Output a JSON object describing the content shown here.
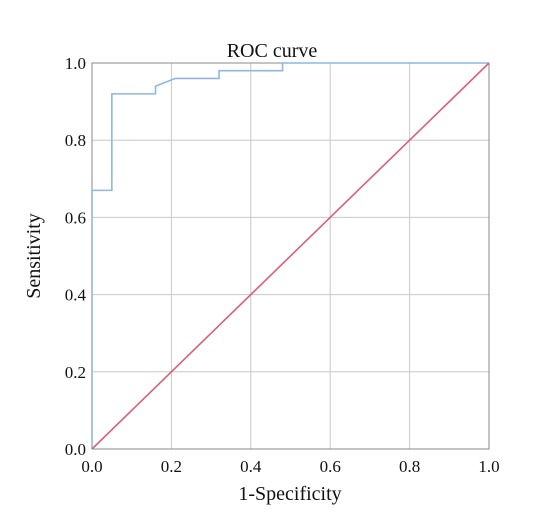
{
  "chart_data": {
    "type": "line",
    "title": "ROC curve",
    "xlabel": "1-Specificity",
    "ylabel": "Sensitivity",
    "xlim": [
      0.0,
      1.0
    ],
    "ylim": [
      0.0,
      1.0
    ],
    "x_ticks": [
      "0.0",
      "0.2",
      "0.4",
      "0.6",
      "0.8",
      "1.0"
    ],
    "y_ticks": [
      "0.0",
      "0.2",
      "0.4",
      "0.6",
      "0.8",
      "1.0"
    ],
    "grid": true,
    "legend": "none",
    "series": [
      {
        "color": "#8fb6e0",
        "x": [
          0.0,
          0.0,
          0.05,
          0.05,
          0.16,
          0.16,
          0.21,
          0.32,
          0.32,
          0.48,
          0.48,
          1.0
        ],
        "y": [
          0.0,
          0.67,
          0.67,
          0.92,
          0.92,
          0.94,
          0.96,
          0.96,
          0.98,
          0.98,
          1.0,
          1.0
        ]
      },
      {
        "color": "#d9607a",
        "x": [
          0.0,
          1.0
        ],
        "y": [
          0.0,
          1.0
        ]
      }
    ]
  }
}
